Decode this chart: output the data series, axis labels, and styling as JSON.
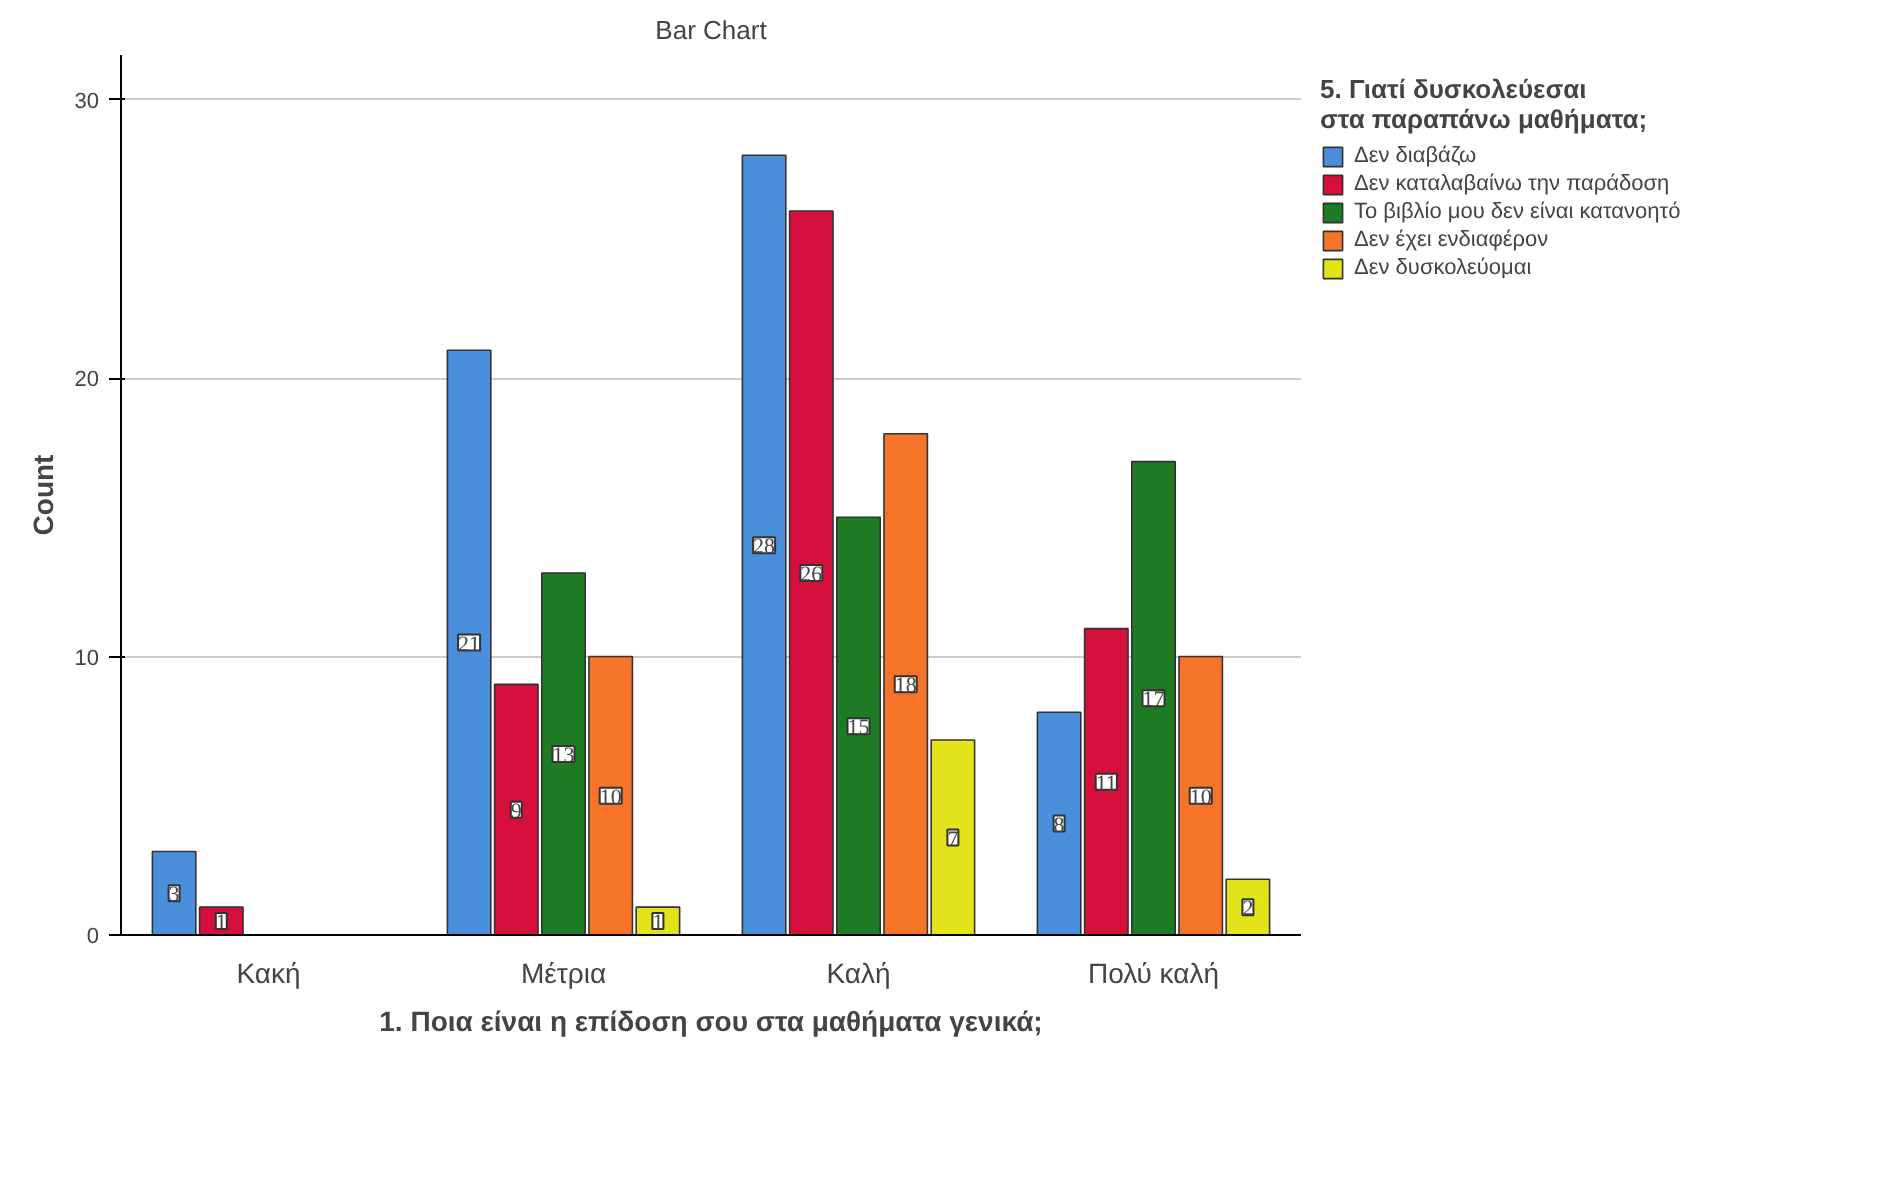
{
  "chart_data": {
    "type": "bar",
    "title": "Bar Chart",
    "xlabel": "1. Ποια είναι η επίδοση σου στα μαθήματα γενικά;",
    "ylabel": "Count",
    "legend_title": "5. Γιατί δυσκολεύεσαι στα παραπάνω μαθήματα;",
    "categories": [
      "Κακή",
      "Μέτρια",
      "Καλή",
      "Πολύ καλή"
    ],
    "series": [
      {
        "name": "Δεν διαβάζω",
        "color": "#4a8fdc",
        "values": [
          3,
          21,
          28,
          8
        ]
      },
      {
        "name": "Δεν καταλαβαίνω την παράδοση",
        "color": "#d60f3c",
        "values": [
          1,
          9,
          26,
          11
        ]
      },
      {
        "name": "Το βιβλίο μου δεν είναι κατανοητό",
        "color": "#1e7d24",
        "values": [
          null,
          13,
          15,
          17
        ]
      },
      {
        "name": "Δεν έχει ενδιαφέρον",
        "color": "#f5742a",
        "values": [
          null,
          10,
          18,
          10
        ]
      },
      {
        "name": "Δεν δυσκολεύομαι",
        "color": "#e3e31a",
        "values": [
          null,
          1,
          7,
          2
        ]
      }
    ],
    "ylim": [
      0,
      31.6
    ],
    "yticks": [
      0,
      10,
      20,
      30
    ],
    "grid": "y",
    "legend": "right",
    "data_labels": true
  }
}
